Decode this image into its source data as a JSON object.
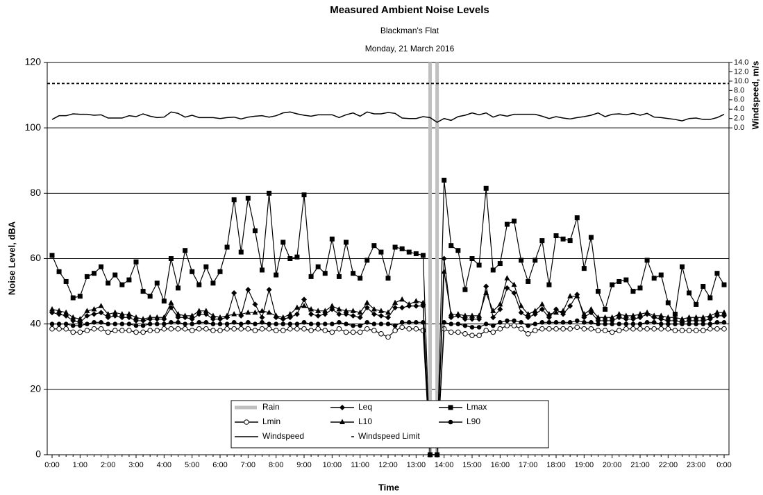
{
  "chart_data": {
    "type": "line",
    "title": "Measured Ambient Noise Levels",
    "subtitle": "Blackman's Flat",
    "date": "Monday, 21 March 2016",
    "xlabel": "Time",
    "ylabel": "Noise Level, dBA",
    "y2label": "Windspeed, m/s",
    "categories": [
      "0:00",
      null,
      null,
      null,
      "1:00",
      null,
      null,
      null,
      "2:00",
      null,
      null,
      null,
      "3:00",
      null,
      null,
      null,
      "4:00",
      null,
      null,
      null,
      "5:00",
      null,
      null,
      null,
      "6:00",
      null,
      null,
      null,
      "7:00",
      null,
      null,
      null,
      "8:00",
      null,
      null,
      null,
      "9:00",
      null,
      null,
      null,
      "10:00",
      null,
      null,
      null,
      "11:00",
      null,
      null,
      null,
      "12:00",
      null,
      null,
      null,
      "13:00",
      null,
      null,
      null,
      "14:00",
      null,
      null,
      null,
      "15:00",
      null,
      null,
      null,
      "16:00",
      null,
      null,
      null,
      "17:00",
      null,
      null,
      null,
      "18:00",
      null,
      null,
      null,
      "19:00",
      null,
      null,
      null,
      "20:00",
      null,
      null,
      null,
      "21:00",
      null,
      null,
      null,
      "22:00",
      null,
      null,
      null,
      "23:00",
      null,
      null,
      null,
      "0:00"
    ],
    "ylim": [
      0,
      120
    ],
    "yticks": [
      0,
      20,
      40,
      60,
      80,
      100,
      120
    ],
    "grid": true,
    "y2lim": [
      -70,
      14
    ],
    "y2ticks": [
      {
        "value": 0,
        "label": "0.0"
      },
      {
        "value": 2,
        "label": "2.0"
      },
      {
        "value": 4,
        "label": "4.0"
      },
      {
        "value": 6,
        "label": "6.0"
      },
      {
        "value": 8,
        "label": "8.0"
      },
      {
        "value": 10,
        "label": "10.0"
      },
      {
        "value": 12,
        "label": "12.0"
      },
      {
        "value": 14,
        "label": "14.0"
      }
    ],
    "rain": {
      "name": "Rain",
      "color": "#c0c0c0",
      "values": [
        null,
        null,
        null,
        null,
        null,
        null,
        null,
        null,
        null,
        null,
        null,
        null,
        null,
        null,
        null,
        null,
        null,
        null,
        null,
        null,
        null,
        null,
        null,
        null,
        null,
        null,
        null,
        null,
        null,
        null,
        null,
        null,
        null,
        null,
        null,
        null,
        null,
        null,
        null,
        null,
        null,
        null,
        null,
        null,
        null,
        null,
        null,
        null,
        null,
        null,
        null,
        null,
        null,
        null,
        120,
        120,
        null,
        null,
        null,
        null,
        null,
        null,
        null,
        null,
        null,
        null,
        null,
        null,
        null,
        null,
        null,
        null,
        null,
        null,
        null,
        null,
        null,
        null,
        null,
        null,
        null,
        null,
        null,
        null,
        null,
        null,
        null,
        null,
        null,
        null,
        null,
        null,
        null,
        null,
        null,
        null,
        null
      ]
    },
    "limit": {
      "name": "Windspeed Limit",
      "value": 9.5,
      "axis": "y2",
      "color": "#000"
    },
    "series": [
      {
        "name": "Lmin",
        "marker": "circle-open",
        "color": "#000",
        "values": [
          38.5,
          38.5,
          38.5,
          37.5,
          37.5,
          38,
          38.5,
          38.5,
          37.5,
          38,
          38,
          38,
          37.5,
          37.5,
          38,
          38,
          38.5,
          38.5,
          38.5,
          38.5,
          38,
          38.5,
          38.5,
          38,
          38,
          38.5,
          38.5,
          38.5,
          38.5,
          38,
          38.5,
          38.5,
          38,
          38,
          38.5,
          38.5,
          38.5,
          38,
          38.5,
          38,
          37.5,
          38.5,
          37.5,
          37.5,
          37.5,
          38.5,
          38,
          37,
          36,
          38,
          39,
          38.5,
          38.5,
          38,
          0,
          0,
          38.5,
          37.5,
          37.5,
          37,
          36.5,
          36.5,
          38,
          37.5,
          38.5,
          39.5,
          39.5,
          38.5,
          37,
          38,
          38.5,
          38.5,
          38.5,
          38.5,
          38.5,
          39,
          38.5,
          38.5,
          38,
          38,
          37.5,
          38,
          38.5,
          38.5,
          38.5,
          38.5,
          38.5,
          38.5,
          38.5,
          38,
          38,
          38,
          38,
          38,
          38.5,
          38.5,
          38.5
        ]
      },
      {
        "name": "L90",
        "marker": "circle",
        "color": "#000",
        "values": [
          40,
          40,
          40,
          39.5,
          39.5,
          40,
          40.5,
          40.5,
          40,
          40,
          40,
          40,
          39.5,
          39.5,
          40,
          40,
          40,
          40.5,
          40.5,
          40,
          40,
          40.5,
          40.5,
          40,
          40,
          40,
          40.5,
          40,
          40.5,
          40,
          40.5,
          40,
          40,
          40,
          40,
          40,
          40.5,
          40,
          40,
          40,
          40,
          40.5,
          40,
          39.5,
          39.5,
          40.5,
          40,
          40,
          40,
          39.5,
          40.5,
          40.5,
          40.5,
          40.5,
          0,
          0,
          40.5,
          40,
          40,
          39.5,
          39,
          39,
          40,
          39.5,
          40.5,
          41,
          41,
          40.5,
          39.5,
          40,
          40.5,
          40.5,
          40.5,
          40.5,
          40.5,
          41,
          40.5,
          40.5,
          40,
          40,
          40,
          40,
          40,
          40,
          40,
          40.5,
          40.5,
          40,
          40,
          40,
          40,
          40,
          40,
          40,
          40,
          40.5,
          40.5
        ]
      },
      {
        "name": "L10",
        "marker": "triangle",
        "color": "#000",
        "values": [
          44.5,
          44,
          43.5,
          42,
          41.5,
          44,
          44.5,
          45.5,
          43,
          43.5,
          43,
          43,
          42,
          41.5,
          42,
          42,
          42,
          46.5,
          43,
          42.5,
          42.5,
          44,
          44,
          42.5,
          42,
          42.5,
          43,
          43,
          43.5,
          43.5,
          44,
          43.5,
          42.5,
          42,
          43,
          45,
          45.5,
          44.5,
          44,
          44,
          45.5,
          44.5,
          44,
          44,
          43.5,
          46.5,
          44.5,
          44,
          43.5,
          46.5,
          47.5,
          46,
          47,
          46.5,
          0,
          0,
          56,
          43,
          43,
          42.5,
          42.5,
          42.5,
          49.5,
          44,
          46,
          54,
          52,
          45.5,
          43,
          44,
          46,
          43,
          43.5,
          44,
          48.5,
          48.5,
          43,
          44.5,
          42,
          42,
          42,
          43,
          42.5,
          42.5,
          43,
          43.5,
          42.5,
          42.5,
          42,
          42,
          41.5,
          42,
          42,
          42,
          42.5,
          43.5,
          43.5
        ]
      },
      {
        "name": "Leq",
        "marker": "diamond",
        "color": "#000",
        "values": [
          43.5,
          43,
          42.5,
          41,
          40.5,
          42.5,
          43,
          43.5,
          42,
          42.5,
          42,
          42,
          41,
          41,
          41.5,
          41.5,
          41.5,
          45,
          42,
          42,
          41.5,
          43,
          43,
          41.5,
          41.5,
          42,
          49.5,
          42.5,
          50.5,
          46,
          42,
          50.5,
          42,
          41.5,
          42,
          43,
          47.5,
          43,
          42.5,
          43,
          44.5,
          43,
          43,
          42.5,
          42,
          45,
          43,
          42.5,
          42,
          45,
          45,
          45.5,
          45.5,
          45.5,
          0,
          0,
          60,
          42,
          42.5,
          41.5,
          41.5,
          41.5,
          51.5,
          42,
          44.5,
          51,
          49.5,
          43.5,
          42,
          43,
          44.5,
          42,
          44.5,
          43,
          45.5,
          49,
          42,
          43.5,
          41,
          41,
          41,
          42,
          41.5,
          41.5,
          42,
          43,
          42,
          41.5,
          41,
          41,
          40.5,
          41,
          41,
          41,
          41.5,
          42.5,
          42.5
        ]
      },
      {
        "name": "Lmax",
        "marker": "square",
        "color": "#000",
        "values": [
          61,
          56,
          53,
          48,
          48.5,
          54.5,
          55.5,
          57.5,
          52.5,
          55,
          52,
          53.5,
          59,
          50,
          48.5,
          52.5,
          47,
          60,
          51,
          62.5,
          56,
          52,
          57.5,
          52.5,
          56,
          63.5,
          78,
          62,
          78.5,
          68.5,
          56.5,
          80,
          55,
          65,
          60,
          60.5,
          79.5,
          54.5,
          57.5,
          55.5,
          66,
          54.5,
          65,
          55.5,
          54,
          59.5,
          64,
          62,
          54,
          63.5,
          63,
          62,
          61.5,
          61,
          0,
          0,
          84,
          64,
          62.5,
          50.5,
          60,
          58,
          81.5,
          56.5,
          58.5,
          70.5,
          71.5,
          59.5,
          53,
          59.5,
          65.5,
          52,
          67,
          66,
          65.5,
          72.5,
          57,
          66.5,
          50,
          44.5,
          52,
          53,
          53.5,
          50,
          51,
          59.5,
          54,
          55,
          46.5,
          43,
          57.5,
          49.5,
          46,
          51.5,
          48,
          55.5,
          52
        ]
      },
      {
        "name": "Windspeed",
        "marker": "none",
        "axis": "y2",
        "color": "#000",
        "values": [
          1.8,
          2.6,
          2.6,
          3.0,
          2.9,
          2.9,
          2.7,
          2.8,
          2.1,
          2.1,
          2.1,
          2.6,
          2.4,
          3.0,
          2.5,
          2.2,
          2.3,
          3.4,
          3.1,
          2.3,
          2.7,
          2.2,
          2.2,
          2.2,
          2.0,
          2.2,
          2.3,
          1.9,
          2.3,
          2.5,
          2.6,
          2.3,
          2.6,
          3.2,
          3.4,
          3.0,
          2.7,
          2.5,
          2.8,
          2.8,
          2.8,
          2.2,
          2.8,
          3.2,
          2.5,
          3.4,
          3.0,
          3.0,
          3.3,
          3.1,
          2.1,
          2.0,
          2.0,
          2.4,
          2.2,
          1.2,
          2.0,
          1.6,
          2.4,
          2.7,
          3.2,
          2.8,
          3.2,
          2.3,
          2.8,
          2.5,
          2.9,
          2.9,
          2.9,
          2.9,
          2.5,
          2.0,
          2.4,
          2.1,
          1.9,
          2.2,
          2.4,
          2.7,
          3.2,
          2.4,
          2.9,
          3.0,
          2.8,
          3.1,
          2.7,
          3.1,
          2.3,
          2.2,
          2.0,
          1.8,
          1.5,
          2.0,
          2.1,
          1.8,
          1.8,
          2.2,
          2.9
        ]
      }
    ]
  }
}
